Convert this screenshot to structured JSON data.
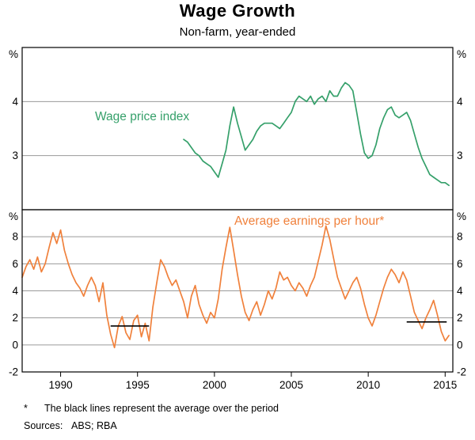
{
  "chart_data": {
    "type": "line",
    "title": "Wage Growth",
    "subtitle": "Non-farm, year-ended",
    "x_range": [
      1987.5,
      2015.5
    ],
    "x_ticks": [
      1990,
      1995,
      2000,
      2005,
      2010,
      2015
    ],
    "grid": "horizontal-only",
    "panels": [
      {
        "id": "wage-price-index",
        "label": "Wage price index",
        "color": "#35a06a",
        "unit": "%",
        "ylim": [
          2,
          5
        ],
        "yticks": [
          3,
          4
        ],
        "edge_labels": [],
        "series": {
          "x_start": 1998.0,
          "x_step": 0.25,
          "values": [
            3.3,
            3.25,
            3.15,
            3.05,
            3.0,
            2.9,
            2.85,
            2.8,
            2.7,
            2.6,
            2.85,
            3.1,
            3.55,
            3.9,
            3.6,
            3.35,
            3.1,
            3.2,
            3.3,
            3.45,
            3.55,
            3.6,
            3.6,
            3.6,
            3.55,
            3.5,
            3.6,
            3.7,
            3.8,
            4.0,
            4.1,
            4.05,
            4.0,
            4.1,
            3.95,
            4.05,
            4.1,
            4.0,
            4.2,
            4.1,
            4.1,
            4.25,
            4.35,
            4.3,
            4.2,
            3.8,
            3.4,
            3.05,
            2.95,
            3.0,
            3.2,
            3.5,
            3.7,
            3.85,
            3.9,
            3.75,
            3.7,
            3.75,
            3.8,
            3.65,
            3.4,
            3.15,
            2.95,
            2.8,
            2.65,
            2.6,
            2.55,
            2.5,
            2.5,
            2.45
          ]
        },
        "average_lines": []
      },
      {
        "id": "average-earnings-per-hour",
        "label": "Average earnings per hour*",
        "color": "#f0813c",
        "unit": "%",
        "ylim": [
          -2,
          10
        ],
        "yticks": [
          0,
          2,
          4,
          6,
          8
        ],
        "edge_labels": [
          -2
        ],
        "series": {
          "x_start": 1987.5,
          "x_step": 0.25,
          "values": [
            5.0,
            5.8,
            6.3,
            5.6,
            6.5,
            5.4,
            6.0,
            7.2,
            8.3,
            7.5,
            8.5,
            7.0,
            6.0,
            5.2,
            4.6,
            4.2,
            3.6,
            4.4,
            5.0,
            4.4,
            3.2,
            4.6,
            2.2,
            0.8,
            -0.2,
            1.4,
            2.1,
            0.9,
            0.4,
            1.8,
            2.2,
            0.6,
            1.6,
            0.3,
            2.8,
            4.6,
            6.3,
            5.8,
            5.0,
            4.4,
            4.8,
            4.0,
            3.2,
            2.0,
            3.6,
            4.4,
            3.0,
            2.2,
            1.6,
            2.4,
            2.0,
            3.4,
            5.6,
            7.2,
            8.7,
            7.0,
            5.2,
            3.6,
            2.4,
            1.8,
            2.6,
            3.2,
            2.2,
            3.0,
            4.0,
            3.4,
            4.2,
            5.4,
            4.8,
            5.0,
            4.4,
            4.0,
            4.6,
            4.2,
            3.6,
            4.4,
            5.0,
            6.2,
            7.4,
            8.8,
            7.8,
            6.4,
            5.0,
            4.2,
            3.4,
            4.0,
            4.6,
            5.0,
            4.2,
            3.0,
            2.0,
            1.4,
            2.2,
            3.2,
            4.2,
            5.0,
            5.6,
            5.2,
            4.6,
            5.4,
            4.8,
            3.6,
            2.4,
            1.8,
            1.2,
            2.0,
            2.6,
            3.3,
            2.2,
            1.0,
            0.3,
            0.7
          ]
        },
        "average_lines": [
          {
            "x1": 1993.25,
            "x2": 1995.75,
            "y": 1.4
          },
          {
            "x1": 2012.5,
            "x2": 2015.1,
            "y": 1.7
          }
        ]
      }
    ],
    "average_line_color": "#000000",
    "footnote_marker": "*",
    "footnote_text": "The black lines represent the average over the period",
    "sources_label": "Sources:",
    "sources_value": "ABS; RBA"
  }
}
